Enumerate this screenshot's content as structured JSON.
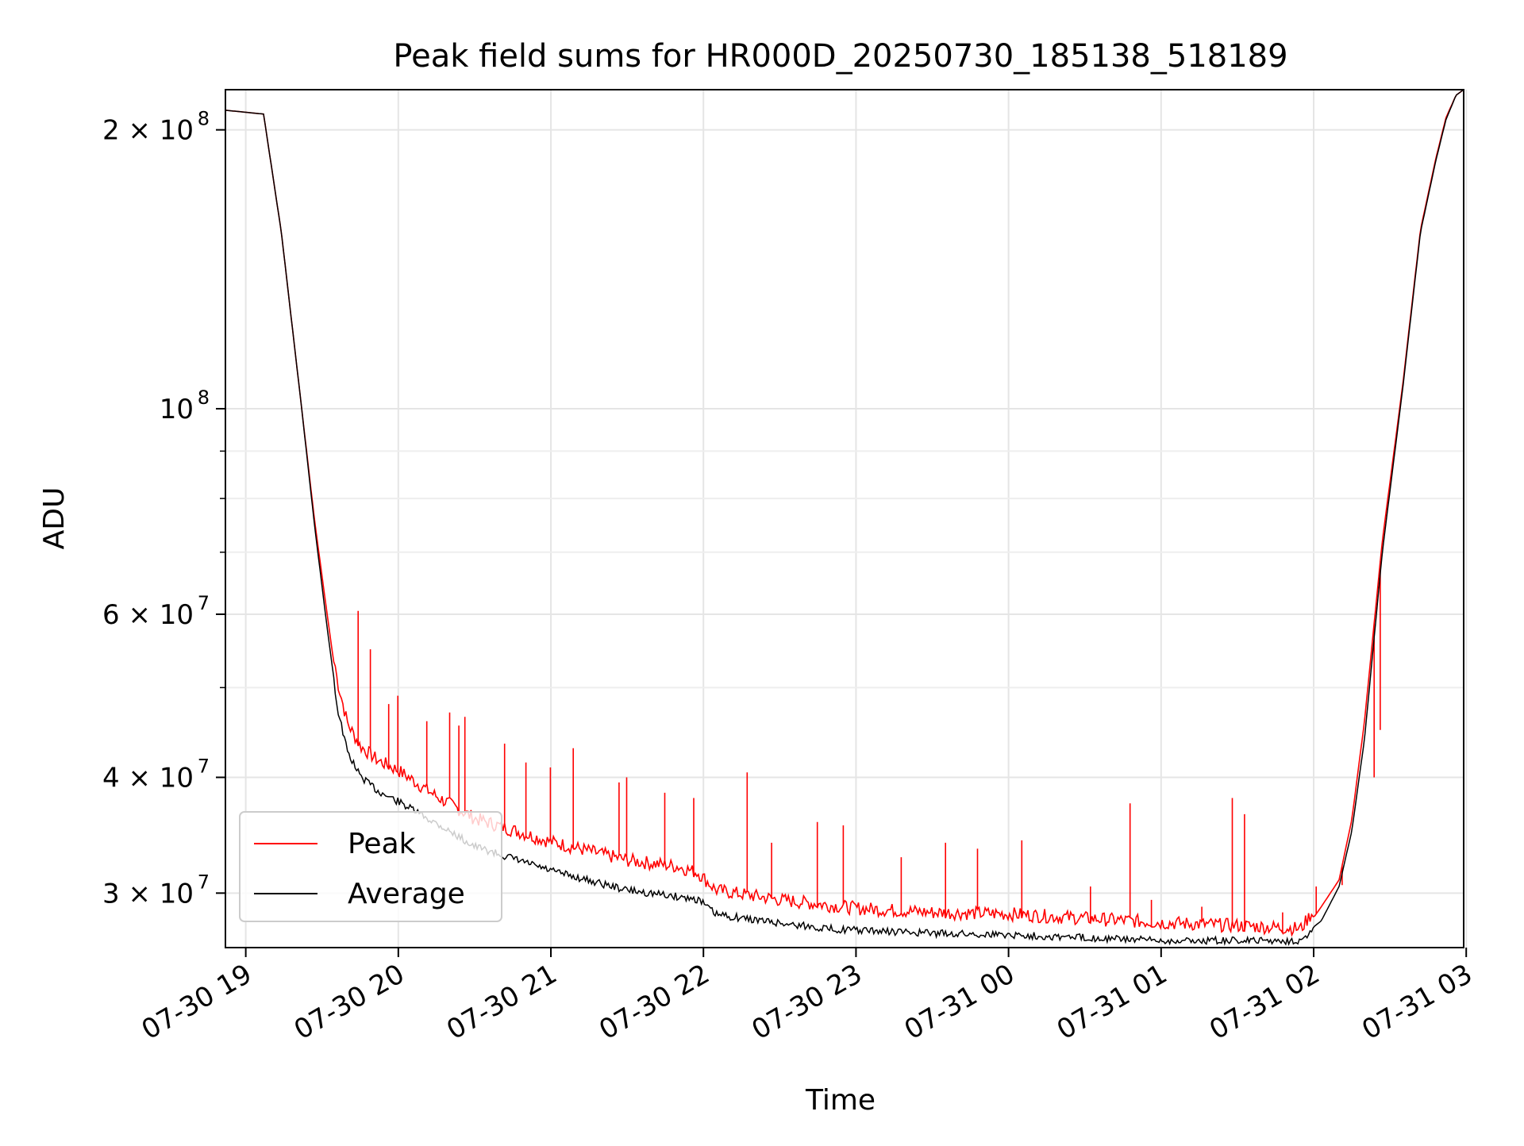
{
  "chart_data": {
    "type": "line",
    "title": "Peak field sums for HR000D_20250730_185138_518189",
    "xlabel": "Time",
    "ylabel": "ADU",
    "y_scale": "log",
    "grid": true,
    "legend_position": "lower-left",
    "xlim": [
      "2025-07-30 18:52",
      "2025-07-31 02:59"
    ],
    "ylim": [
      26200000,
      221000000
    ],
    "x_ticks": [
      {
        "label": "07-30 19",
        "value": "2025-07-30 19:00"
      },
      {
        "label": "07-30 20",
        "value": "2025-07-30 20:00"
      },
      {
        "label": "07-30 21",
        "value": "2025-07-30 21:00"
      },
      {
        "label": "07-30 22",
        "value": "2025-07-30 22:00"
      },
      {
        "label": "07-30 23",
        "value": "2025-07-30 23:00"
      },
      {
        "label": "07-31 00",
        "value": "2025-07-31 00:00"
      },
      {
        "label": "07-31 01",
        "value": "2025-07-31 01:00"
      },
      {
        "label": "07-31 02",
        "value": "2025-07-31 02:00"
      },
      {
        "label": "07-31 03",
        "value": "2025-07-31 03:00"
      }
    ],
    "y_ticks": [
      {
        "label": "2 × 10",
        "exp": "8",
        "value": 200000000
      },
      {
        "label": "10",
        "exp": "8",
        "value": 100000000
      },
      {
        "label": "6 × 10",
        "exp": "7",
        "value": 60000000
      },
      {
        "label": "4 × 10",
        "exp": "7",
        "value": 40000000
      },
      {
        "label": "3 × 10",
        "exp": "7",
        "value": 30000000
      }
    ],
    "y_minor_ticks": [
      90000000,
      80000000,
      70000000,
      50000000
    ],
    "series": [
      {
        "name": "Average",
        "color": "#000000",
        "x": [
          "2025-07-30 18:52",
          "2025-07-30 19:07",
          "2025-07-30 19:14",
          "2025-07-30 19:22",
          "2025-07-30 19:27",
          "2025-07-30 19:32",
          "2025-07-30 19:36",
          "2025-07-30 19:40",
          "2025-07-30 19:45",
          "2025-07-30 19:52",
          "2025-07-30 20:00",
          "2025-07-30 20:15",
          "2025-07-30 20:30",
          "2025-07-30 21:00",
          "2025-07-30 21:30",
          "2025-07-30 21:50",
          "2025-07-30 21:58",
          "2025-07-30 22:05",
          "2025-07-30 22:30",
          "2025-07-30 22:50",
          "2025-07-30 23:00",
          "2025-07-30 23:30",
          "2025-07-31 00:00",
          "2025-07-31 00:30",
          "2025-07-31 01:00",
          "2025-07-31 01:30",
          "2025-07-31 01:55",
          "2025-07-31 02:03",
          "2025-07-31 02:10",
          "2025-07-31 02:15",
          "2025-07-31 02:20",
          "2025-07-31 02:27",
          "2025-07-31 02:35",
          "2025-07-31 02:42",
          "2025-07-31 02:48",
          "2025-07-31 02:52",
          "2025-07-31 02:56",
          "2025-07-31 02:59"
        ],
        "values": [
          210000000,
          208000000,
          155000000,
          100000000,
          75000000,
          58000000,
          48000000,
          43000000,
          40500000,
          39000000,
          38000000,
          36000000,
          34000000,
          32000000,
          30500000,
          30000000,
          29800000,
          28700000,
          28100000,
          27700000,
          27600000,
          27400000,
          27300000,
          27100000,
          26900000,
          26900000,
          26900000,
          28000000,
          30500000,
          35000000,
          44000000,
          70000000,
          105000000,
          155000000,
          185000000,
          205000000,
          218000000,
          221000000
        ]
      },
      {
        "name": "Peak",
        "color": "#ff0000",
        "x": [
          "2025-07-30 18:52",
          "2025-07-30 19:07",
          "2025-07-30 19:14",
          "2025-07-30 19:22",
          "2025-07-30 19:27",
          "2025-07-30 19:32",
          "2025-07-30 19:36",
          "2025-07-30 19:40",
          "2025-07-30 19:45",
          "2025-07-30 19:52",
          "2025-07-30 20:00",
          "2025-07-30 20:15",
          "2025-07-30 20:30",
          "2025-07-30 21:00",
          "2025-07-30 21:30",
          "2025-07-30 21:50",
          "2025-07-30 21:58",
          "2025-07-30 22:05",
          "2025-07-30 22:30",
          "2025-07-30 22:50",
          "2025-07-30 23:00",
          "2025-07-30 23:30",
          "2025-07-31 00:00",
          "2025-07-31 00:30",
          "2025-07-31 01:00",
          "2025-07-31 01:30",
          "2025-07-31 01:55",
          "2025-07-31 02:03",
          "2025-07-31 02:10",
          "2025-07-31 02:15",
          "2025-07-31 02:20",
          "2025-07-31 02:27",
          "2025-07-31 02:35",
          "2025-07-31 02:42",
          "2025-07-31 02:48",
          "2025-07-31 02:52",
          "2025-07-31 02:56",
          "2025-07-31 02:59"
        ],
        "values": [
          210000000,
          208000000,
          155000000,
          100000000,
          76000000,
          60000000,
          50000000,
          45000000,
          42500000,
          41000000,
          40000000,
          37500000,
          35500000,
          33500000,
          32000000,
          31500000,
          31000000,
          29700000,
          29000000,
          28600000,
          28400000,
          28100000,
          28000000,
          27700000,
          27400000,
          27200000,
          27000000,
          29000000,
          31000000,
          36000000,
          46000000,
          72000000,
          106000000,
          156000000,
          186000000,
          206000000,
          218000000,
          221000000
        ],
        "spikes": [
          {
            "x": "2025-07-30 19:44",
            "value": 60500000
          },
          {
            "x": "2025-07-30 19:49",
            "value": 55000000
          },
          {
            "x": "2025-07-30 19:56",
            "value": 48000000
          },
          {
            "x": "2025-07-30 20:00",
            "value": 49000000
          },
          {
            "x": "2025-07-30 20:11",
            "value": 46000000
          },
          {
            "x": "2025-07-30 20:20",
            "value": 47000000
          },
          {
            "x": "2025-07-30 20:24",
            "value": 45500000
          },
          {
            "x": "2025-07-30 20:26",
            "value": 46500000
          },
          {
            "x": "2025-07-30 20:42",
            "value": 43500000
          },
          {
            "x": "2025-07-30 20:50",
            "value": 41500000
          },
          {
            "x": "2025-07-30 21:00",
            "value": 41000000
          },
          {
            "x": "2025-07-30 21:09",
            "value": 43000000
          },
          {
            "x": "2025-07-30 21:27",
            "value": 39500000
          },
          {
            "x": "2025-07-30 21:30",
            "value": 40000000
          },
          {
            "x": "2025-07-30 21:45",
            "value": 38500000
          },
          {
            "x": "2025-07-30 21:56",
            "value": 38000000
          },
          {
            "x": "2025-07-30 22:17",
            "value": 40500000
          },
          {
            "x": "2025-07-30 22:27",
            "value": 34000000
          },
          {
            "x": "2025-07-30 22:45",
            "value": 35800000
          },
          {
            "x": "2025-07-30 22:55",
            "value": 35500000
          },
          {
            "x": "2025-07-30 23:18",
            "value": 32800000
          },
          {
            "x": "2025-07-30 23:35",
            "value": 34000000
          },
          {
            "x": "2025-07-30 23:48",
            "value": 33500000
          },
          {
            "x": "2025-07-31 00:05",
            "value": 34200000
          },
          {
            "x": "2025-07-31 00:32",
            "value": 30500000
          },
          {
            "x": "2025-07-31 00:48",
            "value": 37500000
          },
          {
            "x": "2025-07-31 00:56",
            "value": 29500000
          },
          {
            "x": "2025-07-31 01:16",
            "value": 29000000
          },
          {
            "x": "2025-07-31 01:28",
            "value": 38000000
          },
          {
            "x": "2025-07-31 01:33",
            "value": 36500000
          },
          {
            "x": "2025-07-31 01:48",
            "value": 28600000
          },
          {
            "x": "2025-07-31 02:01",
            "value": 30500000
          },
          {
            "x": "2025-07-31 02:11",
            "value": 30600000
          },
          {
            "x": "2025-07-31 02:24",
            "value": 40000000
          },
          {
            "x": "2025-07-31 02:26",
            "value": 45000000
          }
        ]
      }
    ],
    "legend": [
      {
        "label": "Peak",
        "color": "#ff0000"
      },
      {
        "label": "Average",
        "color": "#000000"
      }
    ]
  }
}
